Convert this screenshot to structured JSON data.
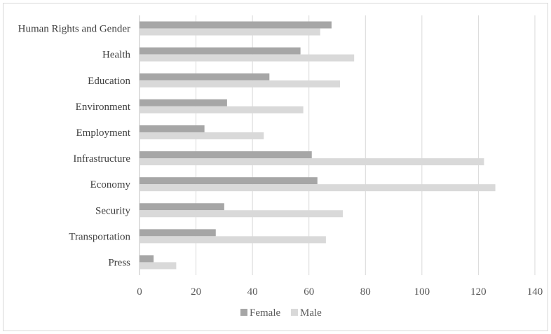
{
  "chart_data": {
    "type": "bar",
    "orientation": "horizontal",
    "categories": [
      "Human Rights and Gender",
      "Health",
      "Education",
      "Environment",
      "Employment",
      "Infrastructure",
      "Economy",
      "Security",
      "Transportation",
      "Press"
    ],
    "series": [
      {
        "name": "Female",
        "values": [
          68,
          57,
          46,
          31,
          23,
          61,
          63,
          30,
          27,
          5
        ]
      },
      {
        "name": "Male",
        "values": [
          64,
          76,
          71,
          58,
          44,
          122,
          126,
          72,
          66,
          13
        ]
      }
    ],
    "xlim": [
      0,
      140
    ],
    "xticks": [
      0,
      20,
      40,
      60,
      80,
      100,
      120,
      140
    ],
    "grid": "vertical",
    "legend_position": "bottom",
    "colors": {
      "Female": "#a6a6a6",
      "Male": "#d9d9d9",
      "grid": "#d9d9d9",
      "axis": "#bfbfbf"
    }
  }
}
